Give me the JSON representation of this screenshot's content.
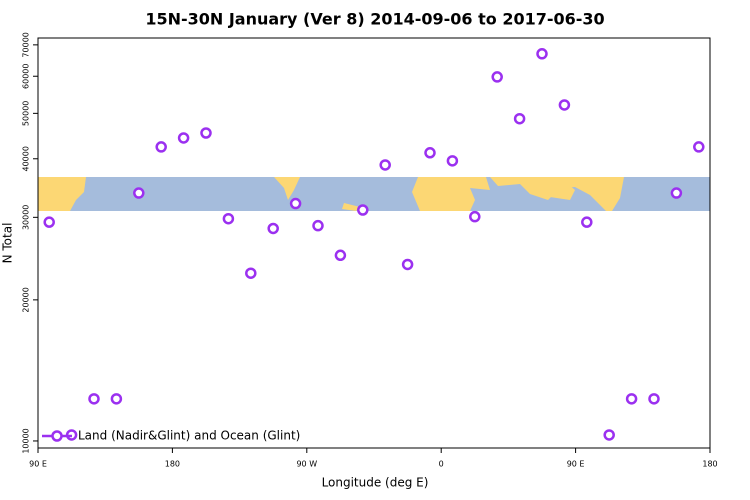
{
  "chart_data": {
    "type": "scatter",
    "title": "15N-30N January (Ver 8)   2014-09-06 to 2017-06-30",
    "x_label": "Longitude (deg E)",
    "y_label": "N Total",
    "x": [
      97.5,
      112.5,
      127.5,
      142.5,
      157.5,
      172.5,
      187.5,
      202.5,
      217.5,
      232.5,
      247.5,
      262.5,
      277.5,
      292.5,
      307.5,
      322.5,
      337.5,
      352.5,
      367.5,
      382.5,
      397.5,
      412.5,
      427.5,
      442.5,
      457.5,
      472.5,
      487.5,
      502.5,
      517.5,
      532.5
    ],
    "series": [
      {
        "name": "Land (Nadir&Glint) and Ocean (Glint)",
        "color": "#9b30f0",
        "values": [
          29300,
          10300,
          12300,
          12300,
          33800,
          42400,
          44300,
          45400,
          29800,
          22800,
          28400,
          32100,
          28800,
          24900,
          31100,
          38800,
          23800,
          41200,
          39600,
          30100,
          59800,
          48700,
          67000,
          52100,
          29300,
          10300,
          12300,
          12300,
          33800,
          42400
        ]
      }
    ],
    "xlim": [
      90,
      540
    ],
    "xticks": [
      {
        "value": 90,
        "label": "90 E"
      },
      180,
      {
        "value": 270,
        "label": "90 W"
      },
      {
        "value": 360,
        "label": "0"
      },
      {
        "value": 450,
        "label": "90 E"
      },
      {
        "value": 540,
        "label": "180"
      }
    ],
    "ylim": [
      9660,
      72400
    ],
    "yticks": [
      10000,
      20000,
      30000,
      40000,
      50000,
      60000,
      70000
    ],
    "log_y": true,
    "legend": "bottom-left"
  }
}
